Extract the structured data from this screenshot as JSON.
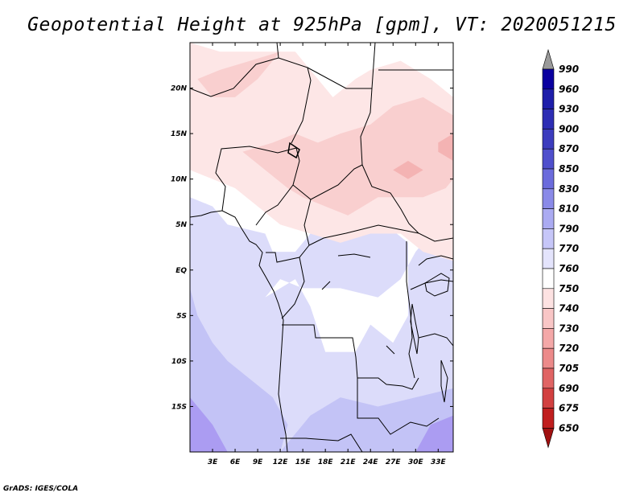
{
  "title": "Geopotential Height at 925hPa [gpm], VT: 2020051215",
  "credit": "GrADS: IGES/COLA",
  "map": {
    "lon_range": [
      0,
      35
    ],
    "lat_range": [
      -20,
      25
    ],
    "x_ticks": [
      "3E",
      "6E",
      "9E",
      "12E",
      "15E",
      "18E",
      "21E",
      "24E",
      "27E",
      "30E",
      "33E"
    ],
    "x_tick_values": [
      3,
      6,
      9,
      12,
      15,
      18,
      21,
      24,
      27,
      30,
      33
    ],
    "y_ticks": [
      "20N",
      "15N",
      "10N",
      "5N",
      "EQ",
      "5S",
      "10S",
      "15S"
    ],
    "y_tick_values": [
      20,
      15,
      10,
      5,
      0,
      -5,
      -10,
      -15
    ],
    "regions": [
      {
        "level": "770",
        "color": "#dcdcfa",
        "points": [
          [
            0,
            -20
          ],
          [
            35,
            -20
          ],
          [
            35,
            25
          ],
          [
            0,
            25
          ]
        ]
      },
      {
        "level": "760",
        "color": "#ffffff",
        "points": [
          [
            10,
            -3
          ],
          [
            14,
            -1
          ],
          [
            16,
            -4
          ],
          [
            18,
            -9
          ],
          [
            22,
            -9
          ],
          [
            24,
            -6
          ],
          [
            27,
            -8
          ],
          [
            29,
            -5
          ],
          [
            29,
            3
          ],
          [
            26,
            5
          ],
          [
            20,
            5
          ],
          [
            16,
            4
          ],
          [
            14,
            2
          ],
          [
            11,
            2
          ],
          [
            10,
            4
          ],
          [
            5,
            5
          ],
          [
            3,
            7
          ],
          [
            0,
            8
          ],
          [
            0,
            25
          ],
          [
            35,
            25
          ],
          [
            35,
            14
          ],
          [
            33,
            12
          ],
          [
            33,
            5
          ],
          [
            30,
            2
          ],
          [
            28,
            -1
          ],
          [
            25,
            -3
          ],
          [
            20,
            -2
          ],
          [
            15,
            -2
          ],
          [
            12,
            -1
          ]
        ]
      },
      {
        "level": "750",
        "color": "#fde6e6",
        "points": [
          [
            0,
            11
          ],
          [
            3,
            10
          ],
          [
            6,
            9
          ],
          [
            9,
            7
          ],
          [
            12,
            5
          ],
          [
            16,
            4
          ],
          [
            20,
            3
          ],
          [
            24,
            4
          ],
          [
            28,
            4
          ],
          [
            31,
            2
          ],
          [
            35,
            1
          ],
          [
            35,
            19
          ],
          [
            32,
            21
          ],
          [
            28,
            23
          ],
          [
            24,
            22
          ],
          [
            22,
            21
          ],
          [
            19,
            19
          ],
          [
            17,
            21
          ],
          [
            14,
            24
          ],
          [
            8,
            24
          ],
          [
            4,
            24
          ],
          [
            0,
            25
          ]
        ]
      },
      {
        "level": "740",
        "color": "#f9cfcf",
        "points": [
          [
            7,
            13
          ],
          [
            10,
            11
          ],
          [
            13,
            9
          ],
          [
            15,
            8
          ],
          [
            18,
            7
          ],
          [
            21,
            6
          ],
          [
            23,
            7
          ],
          [
            25,
            8
          ],
          [
            28,
            8
          ],
          [
            31,
            8
          ],
          [
            34,
            9
          ],
          [
            35,
            10
          ],
          [
            35,
            17
          ],
          [
            31,
            19
          ],
          [
            27,
            18
          ],
          [
            24,
            16
          ],
          [
            20,
            15
          ],
          [
            17,
            14
          ],
          [
            14,
            15
          ],
          [
            11,
            14
          ]
        ]
      },
      {
        "level": "740",
        "color": "#f9cfcf",
        "points": [
          [
            1,
            21
          ],
          [
            4,
            22
          ],
          [
            8,
            23
          ],
          [
            12,
            24
          ],
          [
            9,
            21
          ],
          [
            6,
            19
          ],
          [
            3,
            19
          ]
        ]
      },
      {
        "level": "730",
        "color": "#f4b3b3",
        "points": [
          [
            27,
            11
          ],
          [
            29,
            10
          ],
          [
            31,
            11
          ],
          [
            29,
            12
          ]
        ]
      },
      {
        "level": "730",
        "color": "#f4b3b3",
        "points": [
          [
            33,
            13
          ],
          [
            35,
            12
          ],
          [
            35,
            15
          ],
          [
            33,
            14
          ]
        ]
      },
      {
        "level": "790",
        "color": "#c3c3f6",
        "points": [
          [
            0,
            -20
          ],
          [
            12,
            -20
          ],
          [
            13,
            -17
          ],
          [
            11,
            -14
          ],
          [
            8,
            -12
          ],
          [
            5,
            -10
          ],
          [
            3,
            -8
          ],
          [
            1,
            -5
          ],
          [
            0,
            -2
          ]
        ]
      },
      {
        "level": "790",
        "color": "#c3c3f6",
        "points": [
          [
            12,
            -20
          ],
          [
            35,
            -20
          ],
          [
            35,
            -13
          ],
          [
            30,
            -14
          ],
          [
            25,
            -15
          ],
          [
            20,
            -14
          ],
          [
            16,
            -16
          ]
        ]
      },
      {
        "level": "810",
        "color": "#ab9cf2",
        "points": [
          [
            0,
            -20
          ],
          [
            5,
            -20
          ],
          [
            3,
            -17
          ],
          [
            1,
            -15
          ],
          [
            0,
            -14
          ]
        ]
      },
      {
        "level": "810",
        "color": "#ab9cf2",
        "points": [
          [
            30,
            -20
          ],
          [
            35,
            -20
          ],
          [
            35,
            -16
          ],
          [
            32,
            -17
          ]
        ]
      }
    ]
  },
  "colorbar": {
    "levels": [
      "990",
      "960",
      "930",
      "900",
      "870",
      "850",
      "830",
      "810",
      "790",
      "770",
      "760",
      "750",
      "740",
      "730",
      "720",
      "705",
      "690",
      "675",
      "650"
    ],
    "colors": [
      "#9a9a9a",
      "#0a00a0",
      "#1e1eaa",
      "#2d2db4",
      "#3c3cbe",
      "#4f4fcc",
      "#6b6bdc",
      "#8a8ae8",
      "#ababf2",
      "#c6c6f8",
      "#e4e4fc",
      "#ffffff",
      "#fde2e2",
      "#f9c6c6",
      "#f4a8a8",
      "#ec8a8a",
      "#e06464",
      "#d24040",
      "#c01e1e",
      "#a01010"
    ]
  }
}
